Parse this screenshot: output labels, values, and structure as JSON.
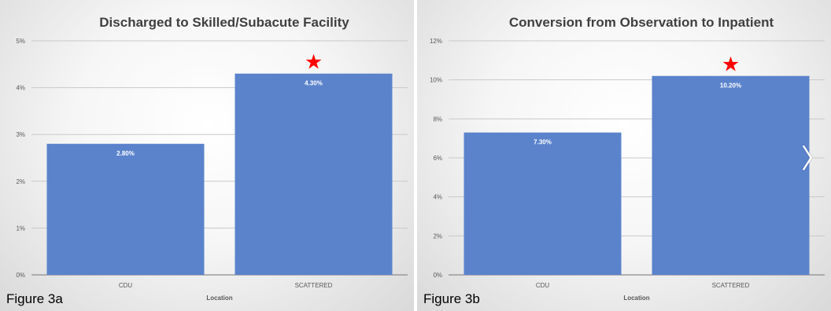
{
  "figures": [
    {
      "label": "Figure 3a",
      "chart_data": {
        "type": "bar",
        "title": "Discharged to Skilled/Subacute Facility",
        "xlabel": "Location",
        "ylabel": "",
        "categories": [
          "CDU",
          "SCATTERED"
        ],
        "values": [
          2.8,
          4.3
        ],
        "data_labels": [
          "2.80%",
          "4.30%"
        ],
        "ylim": [
          0,
          5
        ],
        "yticks": [
          0,
          1,
          2,
          3,
          4,
          5
        ],
        "ytick_labels": [
          "0%",
          "1%",
          "2%",
          "3%",
          "4%",
          "5%"
        ],
        "grid": true,
        "legend": "none",
        "bar_color": "#5b83cc",
        "annotation": {
          "symbol": "★",
          "category": "SCATTERED",
          "color": "#ff0000"
        }
      }
    },
    {
      "label": "Figure 3b",
      "chart_data": {
        "type": "bar",
        "title": "Conversion from Observation to Inpatient",
        "xlabel": "Location",
        "ylabel": "",
        "categories": [
          "CDU",
          "SCATTERED"
        ],
        "values": [
          7.3,
          10.2
        ],
        "data_labels": [
          "7.30%",
          "10.20%"
        ],
        "ylim": [
          0,
          12
        ],
        "yticks": [
          0,
          2,
          4,
          6,
          8,
          10,
          12
        ],
        "ytick_labels": [
          "0%",
          "2%",
          "4%",
          "6%",
          "8%",
          "10%",
          "12%"
        ],
        "grid": true,
        "legend": "none",
        "bar_color": "#5b83cc",
        "annotation": {
          "symbol": "★",
          "category": "SCATTERED",
          "color": "#ff0000"
        }
      }
    }
  ],
  "nav": {
    "next_icon": "chevron-right-icon",
    "next_glyph": "〉"
  }
}
